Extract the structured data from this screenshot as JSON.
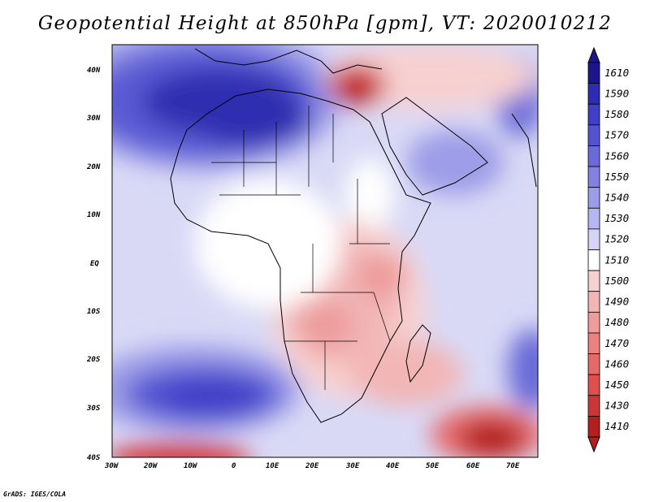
{
  "title": "Geopotential Height at 850hPa [gpm], VT: 2020010212",
  "credit": "GrADS: IGES/COLA",
  "lat_labels": [
    "40N",
    "30N",
    "20N",
    "10N",
    "EQ",
    "10S",
    "20S",
    "30S",
    "40S"
  ],
  "lon_labels": [
    "30W",
    "20W",
    "10W",
    "0",
    "10E",
    "20E",
    "30E",
    "40E",
    "50E",
    "60E",
    "70E"
  ],
  "colorbar": {
    "levels": [
      "1610",
      "1590",
      "1580",
      "1570",
      "1560",
      "1550",
      "1540",
      "1530",
      "1520",
      "1510",
      "1500",
      "1490",
      "1480",
      "1470",
      "1460",
      "1450",
      "1430",
      "1410"
    ],
    "colors": [
      "#1c168a",
      "#2e2db1",
      "#3f3fc8",
      "#5454d2",
      "#6a6ad8",
      "#8282e0",
      "#9c9ce8",
      "#b6b6f0",
      "#d4d4f6",
      "#ffffff",
      "#f7d0d0",
      "#f2b6b6",
      "#ee9c9c",
      "#ea8282",
      "#e66a6a",
      "#de5050",
      "#c93838",
      "#b21f1f"
    ]
  },
  "regions": {
    "blue_highs": "Subtropical highs over North Africa and Southern Atlantic",
    "red_lows": "Lows over eastern Mediterranean and southwest Indian Ocean"
  }
}
